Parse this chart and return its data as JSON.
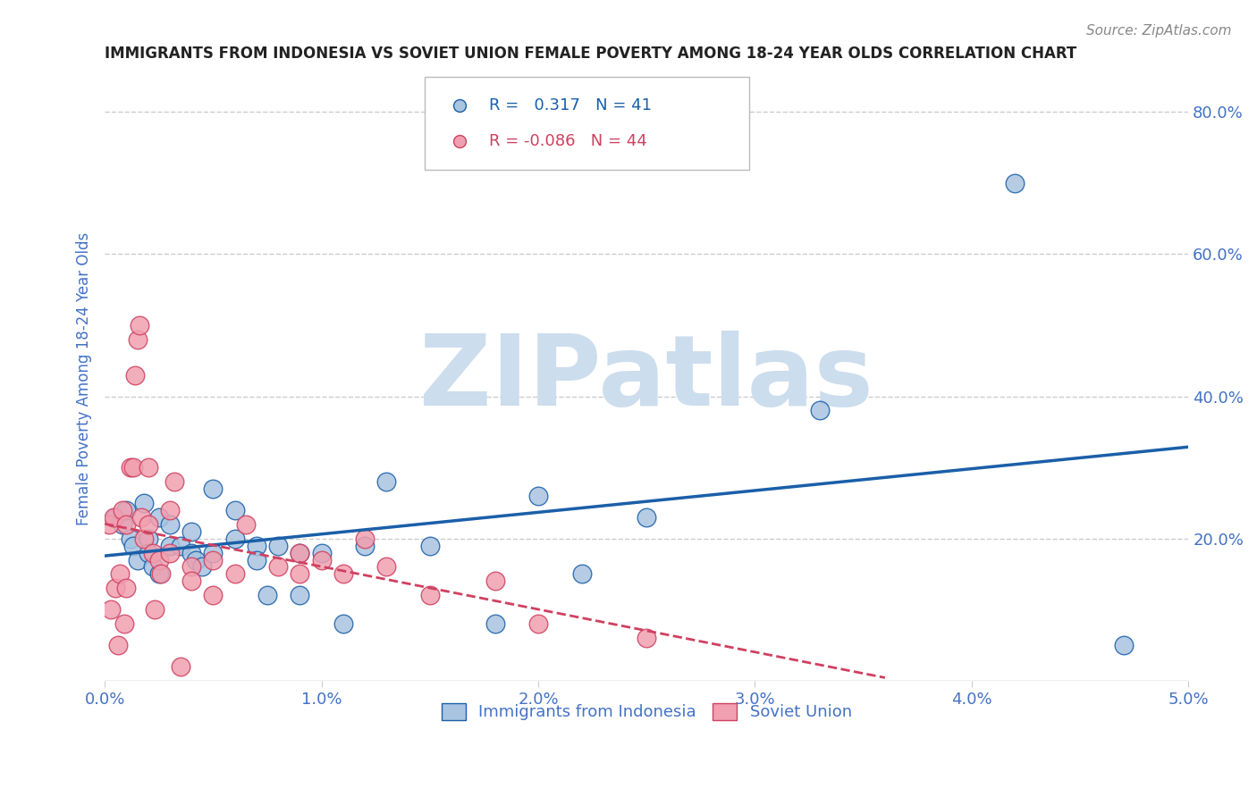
{
  "title": "IMMIGRANTS FROM INDONESIA VS SOVIET UNION FEMALE POVERTY AMONG 18-24 YEAR OLDS CORRELATION CHART",
  "source": "Source: ZipAtlas.com",
  "ylabel": "Female Poverty Among 18-24 Year Olds",
  "xlim": [
    0.0,
    0.05
  ],
  "ylim": [
    0.0,
    0.85
  ],
  "xtick_labels": [
    "0.0%",
    "1.0%",
    "2.0%",
    "3.0%",
    "4.0%",
    "5.0%"
  ],
  "xtick_values": [
    0.0,
    0.01,
    0.02,
    0.03,
    0.04,
    0.05
  ],
  "ytick_labels": [
    "20.0%",
    "40.0%",
    "60.0%",
    "80.0%"
  ],
  "ytick_values": [
    0.2,
    0.4,
    0.6,
    0.8
  ],
  "legend_blue_r": "0.317",
  "legend_blue_n": "41",
  "legend_pink_r": "-0.086",
  "legend_pink_n": "44",
  "legend_blue_label": "Immigrants from Indonesia",
  "legend_pink_label": "Soviet Union",
  "blue_color": "#a8c4e0",
  "blue_line_color": "#1a5fa8",
  "pink_color": "#f0a0b0",
  "pink_line_color": "#d04060",
  "watermark": "ZIPatlas",
  "watermark_color": "#ccdded",
  "title_color": "#222222",
  "axis_label_color": "#4472c4",
  "tick_color": "#4472c4",
  "grid_color": "#cccccc",
  "background_color": "#ffffff",
  "blue_x": [
    0.0005,
    0.0008,
    0.001,
    0.0012,
    0.0013,
    0.0015,
    0.0018,
    0.002,
    0.002,
    0.0022,
    0.0025,
    0.0025,
    0.003,
    0.003,
    0.0035,
    0.004,
    0.004,
    0.0042,
    0.0045,
    0.005,
    0.005,
    0.006,
    0.006,
    0.007,
    0.007,
    0.0075,
    0.008,
    0.009,
    0.009,
    0.01,
    0.011,
    0.012,
    0.013,
    0.015,
    0.018,
    0.02,
    0.022,
    0.025,
    0.033,
    0.042,
    0.047
  ],
  "blue_y": [
    0.23,
    0.22,
    0.24,
    0.2,
    0.19,
    0.17,
    0.25,
    0.2,
    0.18,
    0.16,
    0.15,
    0.23,
    0.22,
    0.19,
    0.19,
    0.18,
    0.21,
    0.17,
    0.16,
    0.18,
    0.27,
    0.24,
    0.2,
    0.19,
    0.17,
    0.12,
    0.19,
    0.18,
    0.12,
    0.18,
    0.08,
    0.19,
    0.28,
    0.19,
    0.08,
    0.26,
    0.15,
    0.23,
    0.38,
    0.7,
    0.05
  ],
  "pink_x": [
    0.0002,
    0.0003,
    0.0004,
    0.0005,
    0.0006,
    0.0007,
    0.0008,
    0.0009,
    0.001,
    0.001,
    0.0012,
    0.0013,
    0.0014,
    0.0015,
    0.0016,
    0.0017,
    0.0018,
    0.002,
    0.002,
    0.0022,
    0.0023,
    0.0025,
    0.0026,
    0.003,
    0.003,
    0.0032,
    0.0035,
    0.004,
    0.004,
    0.005,
    0.005,
    0.006,
    0.0065,
    0.008,
    0.009,
    0.009,
    0.01,
    0.011,
    0.012,
    0.013,
    0.015,
    0.018,
    0.02,
    0.025
  ],
  "pink_y": [
    0.22,
    0.1,
    0.23,
    0.13,
    0.05,
    0.15,
    0.24,
    0.08,
    0.13,
    0.22,
    0.3,
    0.3,
    0.43,
    0.48,
    0.5,
    0.23,
    0.2,
    0.3,
    0.22,
    0.18,
    0.1,
    0.17,
    0.15,
    0.18,
    0.24,
    0.28,
    0.02,
    0.16,
    0.14,
    0.17,
    0.12,
    0.15,
    0.22,
    0.16,
    0.15,
    0.18,
    0.17,
    0.15,
    0.2,
    0.16,
    0.12,
    0.14,
    0.08,
    0.06
  ]
}
